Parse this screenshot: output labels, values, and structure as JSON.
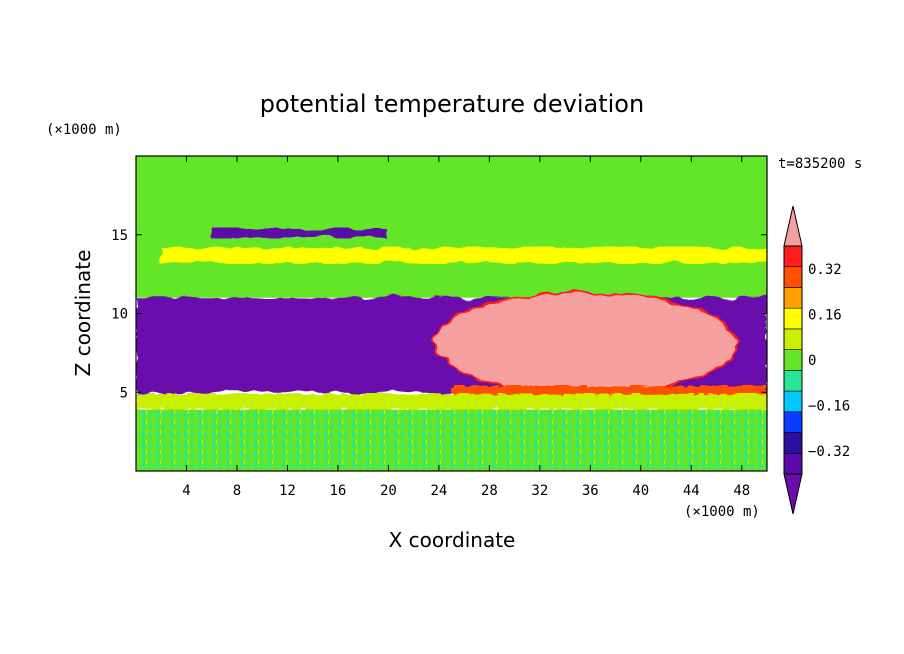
{
  "chart_data": {
    "type": "heatmap",
    "title": "potential temperature deviation",
    "xlabel": "X coordinate",
    "ylabel": "Z coordinate",
    "x_unit": "(×1000 m)",
    "y_unit": "(×1000 m)",
    "time_label": "t=835200 s",
    "xlim": [
      0,
      50
    ],
    "ylim": [
      0,
      20
    ],
    "x_ticks": [
      4,
      8,
      12,
      16,
      20,
      24,
      28,
      32,
      36,
      40,
      44,
      48
    ],
    "y_ticks": [
      5,
      10,
      15
    ],
    "colorbar": {
      "levels": [
        -0.4,
        -0.32,
        -0.24,
        -0.16,
        -0.08,
        0,
        0.08,
        0.16,
        0.24,
        0.32,
        0.4
      ],
      "colors": [
        "#5a0aa8",
        "#2d0f9e",
        "#0a3cff",
        "#00c8ff",
        "#28e696",
        "#64e628",
        "#c8f000",
        "#ffff00",
        "#ffa000",
        "#ff5000",
        "#ff1e1e"
      ],
      "under_color": "#6a0dad",
      "over_color": "#f5a0a0",
      "tick_labels": [
        {
          "value": 0.32,
          "label": "0.32"
        },
        {
          "value": 0.16,
          "label": "0.16"
        },
        {
          "value": 0,
          "label": "0"
        },
        {
          "value": -0.16,
          "label": "−0.16"
        },
        {
          "value": -0.32,
          "label": "−0.32"
        }
      ]
    },
    "field_regions": [
      {
        "name": "upper-atmosphere",
        "x": [
          0,
          50
        ],
        "z": [
          11,
          20
        ],
        "value": 0.04
      },
      {
        "name": "upper-warm-band",
        "x": [
          2,
          50
        ],
        "z": [
          13.2,
          14.2
        ],
        "value": 0.2
      },
      {
        "name": "upper-cool-band",
        "x": [
          6,
          20
        ],
        "z": [
          14.8,
          15.4
        ],
        "value": -0.34
      },
      {
        "name": "mid-cold-layer",
        "x": [
          0,
          50
        ],
        "z": [
          5,
          11
        ],
        "value": -0.42
      },
      {
        "name": "warm-anomaly",
        "x": [
          23,
          47
        ],
        "z": [
          5,
          11.5
        ],
        "value": 0.45
      },
      {
        "name": "warm-anomaly-base",
        "x": [
          25,
          50
        ],
        "z": [
          4.6,
          5.4
        ],
        "value": 0.36
      },
      {
        "name": "lower-stable-layer",
        "x": [
          0,
          50
        ],
        "z": [
          3.9,
          4.9
        ],
        "value": 0.14
      },
      {
        "name": "boundary-layer",
        "x": [
          0,
          50
        ],
        "z": [
          0,
          3.9
        ],
        "value": 0.06
      }
    ]
  }
}
